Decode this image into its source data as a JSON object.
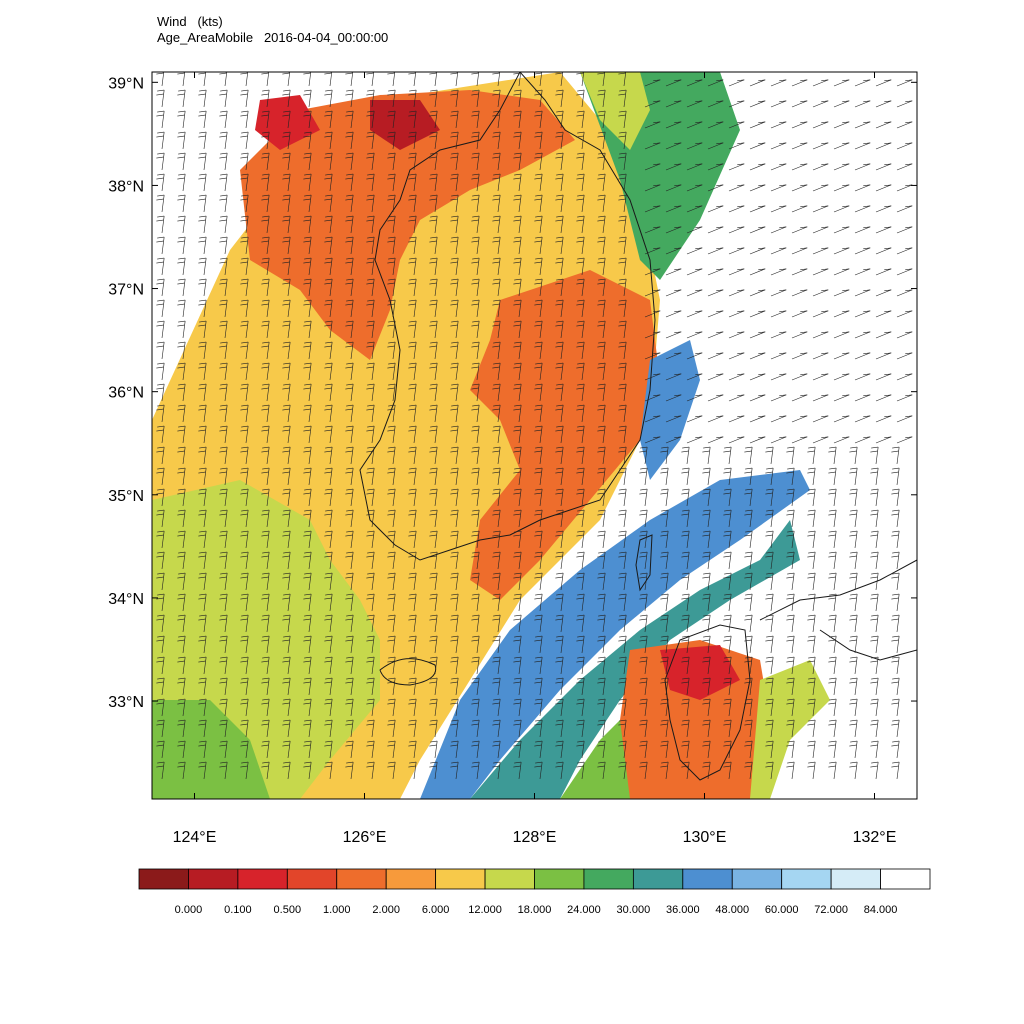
{
  "title": {
    "variable": "Wind   (kts)",
    "subtitle": "Age_AreaMobile   2016-04-04_00:00:00"
  },
  "map": {
    "lat_labels": [
      "39°N",
      "38°N",
      "37°N",
      "36°N",
      "35°N",
      "34°N",
      "33°N"
    ],
    "lon_labels": [
      "124°E",
      "126°E",
      "128°E",
      "130°E",
      "132°E"
    ],
    "lat_range": [
      32.05,
      39.1
    ],
    "lon_range": [
      123.5,
      132.5
    ],
    "colors": {
      "coast": "#1a1a1a",
      "barb": "#222222"
    }
  },
  "colorbar": {
    "colors": [
      "#8b1a1a",
      "#b71c23",
      "#d7232b",
      "#e2452a",
      "#ee6d2c",
      "#f79a3b",
      "#f7c94a",
      "#c6d84c",
      "#7bc043",
      "#44a95f",
      "#3d9a96",
      "#4d8fd1",
      "#79b3e3",
      "#a5d6f2",
      "#d5ecf7",
      "#ffffff"
    ],
    "labels": [
      "0.000",
      "0.100",
      "0.500",
      "1.000",
      "2.000",
      "6.000",
      "12.000",
      "18.000",
      "24.000",
      "30.000",
      "36.000",
      "48.000",
      "60.000",
      "72.000",
      "84.000"
    ]
  }
}
